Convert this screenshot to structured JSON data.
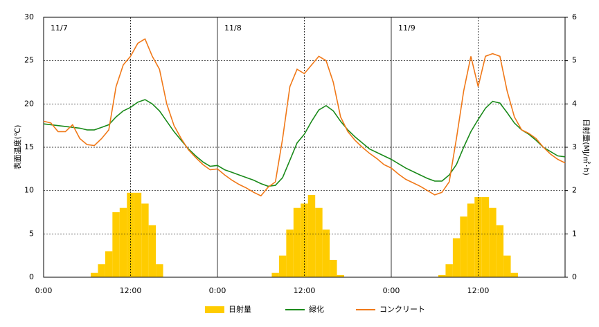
{
  "chart_data": {
    "type": "line",
    "ylabel": "表面温度(℃)",
    "y2label": "日射量(MJ/㎡･h)",
    "annotations": [
      {
        "x": 0,
        "text": "11/7"
      },
      {
        "x": 24,
        "text": "11/8"
      },
      {
        "x": 48,
        "text": "11/9"
      }
    ],
    "x": [
      0,
      1,
      2,
      3,
      4,
      5,
      6,
      7,
      8,
      9,
      10,
      11,
      12,
      13,
      14,
      15,
      16,
      17,
      18,
      19,
      20,
      21,
      22,
      23,
      24,
      25,
      26,
      27,
      28,
      29,
      30,
      31,
      32,
      33,
      34,
      35,
      36,
      37,
      38,
      39,
      40,
      41,
      42,
      43,
      44,
      45,
      46,
      47,
      48,
      49,
      50,
      51,
      52,
      53,
      54,
      55,
      56,
      57,
      58,
      59,
      60,
      61,
      62,
      63,
      64,
      65,
      66,
      67,
      68,
      69,
      70,
      71,
      72
    ],
    "xlim": [
      0,
      72
    ],
    "xticks": [
      {
        "value": 0,
        "label": "0:00"
      },
      {
        "value": 12,
        "label": "12:00"
      },
      {
        "value": 24,
        "label": "0:00"
      },
      {
        "value": 36,
        "label": "12:00"
      },
      {
        "value": 48,
        "label": "0:00"
      },
      {
        "value": 60,
        "label": "12:00"
      }
    ],
    "ylim": [
      0,
      30
    ],
    "yticks": [
      0,
      5,
      10,
      15,
      20,
      25,
      30
    ],
    "y2lim": [
      0,
      6
    ],
    "y2ticks": [
      0,
      1,
      2,
      3,
      4,
      5,
      6
    ],
    "grid": true,
    "legend": "bottom",
    "series": [
      {
        "name": "日射量",
        "type": "bar",
        "axis": "y2",
        "color": "#ffcc00",
        "values": [
          0,
          0,
          0,
          0,
          0,
          0,
          0,
          0.1,
          0.3,
          0.6,
          1.5,
          1.6,
          1.95,
          1.95,
          1.7,
          1.2,
          0.3,
          0,
          0,
          0,
          0,
          0,
          0,
          0,
          0,
          0,
          0,
          0,
          0,
          0,
          0,
          0,
          0.1,
          0.5,
          1.1,
          1.6,
          1.7,
          1.9,
          1.6,
          1.1,
          0.4,
          0.05,
          0,
          0,
          0,
          0,
          0,
          0,
          0,
          0,
          0,
          0,
          0,
          0,
          0,
          0.05,
          0.3,
          0.9,
          1.4,
          1.7,
          1.85,
          1.85,
          1.6,
          1.2,
          0.5,
          0.1,
          0,
          0,
          0,
          0,
          0,
          0,
          0
        ]
      },
      {
        "name": "緑化",
        "type": "line",
        "color": "#1a8a1a",
        "values": [
          17.7,
          17.6,
          17.5,
          17.4,
          17.3,
          17.2,
          17.0,
          17.0,
          17.3,
          17.6,
          18.5,
          19.2,
          19.6,
          20.2,
          20.5,
          20.0,
          19.2,
          18.0,
          16.8,
          15.8,
          14.8,
          14.0,
          13.3,
          12.8,
          12.9,
          12.4,
          12.1,
          11.8,
          11.5,
          11.2,
          10.8,
          10.5,
          10.6,
          11.5,
          13.5,
          15.5,
          16.5,
          18.0,
          19.3,
          19.8,
          19.2,
          18.0,
          17.0,
          16.2,
          15.5,
          14.8,
          14.4,
          14.0,
          13.6,
          13.1,
          12.6,
          12.2,
          11.8,
          11.4,
          11.1,
          11.1,
          11.8,
          13.0,
          15.0,
          16.8,
          18.2,
          19.5,
          20.3,
          20.1,
          19.0,
          17.8,
          17.0,
          16.5,
          15.8,
          15.0,
          14.5,
          14.0,
          13.9
        ]
      },
      {
        "name": "コンクリート",
        "type": "line",
        "color": "#f07818",
        "values": [
          18.0,
          17.8,
          16.8,
          16.8,
          17.6,
          16.0,
          15.3,
          15.2,
          16.0,
          17.0,
          22.0,
          24.5,
          25.5,
          27.0,
          27.5,
          25.5,
          24.0,
          20.0,
          17.5,
          16.0,
          14.7,
          13.8,
          13.0,
          12.4,
          12.5,
          11.8,
          11.2,
          10.7,
          10.3,
          9.8,
          9.4,
          10.4,
          11.0,
          16.0,
          22.0,
          24.0,
          23.5,
          24.5,
          25.5,
          25.0,
          22.5,
          18.5,
          16.8,
          15.8,
          15.0,
          14.3,
          13.7,
          13.0,
          12.6,
          11.9,
          11.3,
          10.9,
          10.5,
          10.0,
          9.5,
          9.8,
          11.0,
          16.0,
          21.5,
          25.5,
          22.0,
          25.5,
          25.8,
          25.5,
          21.5,
          18.5,
          17.0,
          16.6,
          16.0,
          15.0,
          14.2,
          13.6,
          13.2
        ]
      }
    ]
  }
}
